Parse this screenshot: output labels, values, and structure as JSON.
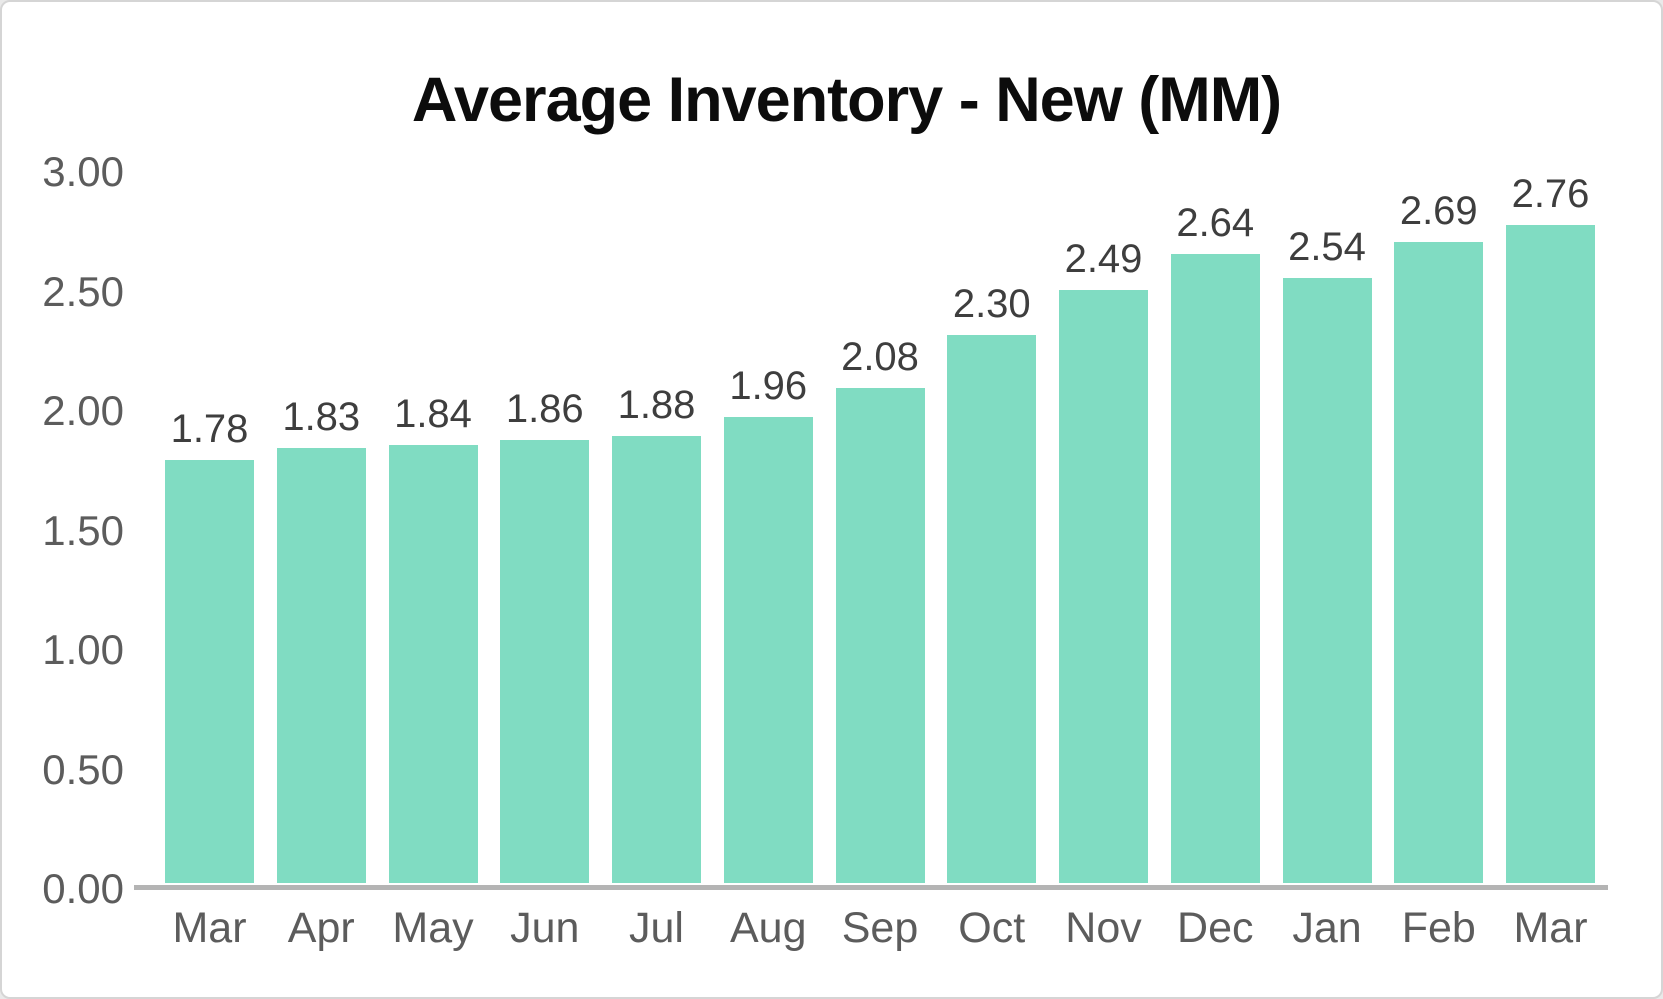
{
  "chart_data": {
    "type": "bar",
    "title": "Average Inventory - New (MM)",
    "categories": [
      "Mar",
      "Apr",
      "May",
      "Jun",
      "Jul",
      "Aug",
      "Sep",
      "Oct",
      "Nov",
      "Dec",
      "Jan",
      "Feb",
      "Mar"
    ],
    "values": [
      1.78,
      1.83,
      1.84,
      1.86,
      1.88,
      1.96,
      2.08,
      2.3,
      2.49,
      2.64,
      2.54,
      2.69,
      2.76
    ],
    "data_labels": [
      "1.78",
      "1.83",
      "1.84",
      "1.86",
      "1.88",
      "1.96",
      "2.08",
      "2.30",
      "2.49",
      "2.64",
      "2.54",
      "2.69",
      "2.76"
    ],
    "xlabel": "",
    "ylabel": "",
    "ylim": [
      0,
      3
    ],
    "ytick_step": 0.5,
    "yticks": [
      "3.00",
      "2.50",
      "2.00",
      "1.50",
      "1.00",
      "0.50",
      "0.00"
    ],
    "grid": false,
    "legend": false
  },
  "style": {
    "bar_color": "#80dcc2",
    "axis_line_color": "#b4b4b4",
    "title_color": "#0c0c0c",
    "data_label_color": "#3e3e3e",
    "tick_color": "#5c5c5c",
    "border_color": "#d5d5d5",
    "background": "#ffffff"
  }
}
